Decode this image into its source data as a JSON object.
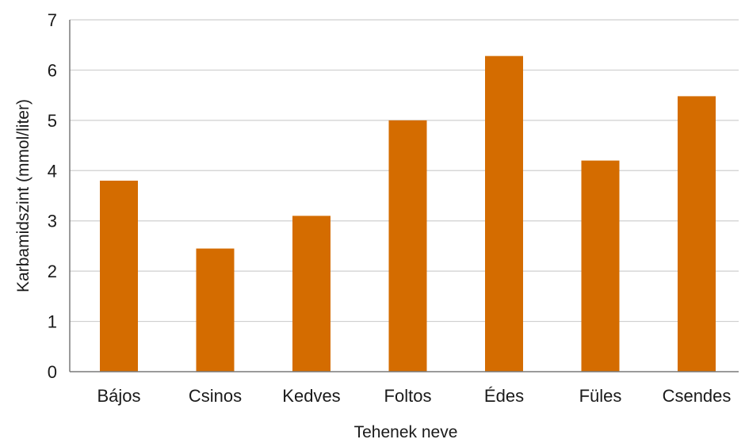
{
  "chart_data": {
    "type": "bar",
    "categories": [
      "Bájos",
      "Csinos",
      "Kedves",
      "Foltos",
      "Édes",
      "Füles",
      "Csendes"
    ],
    "values": [
      3.8,
      2.45,
      3.1,
      5.0,
      6.28,
      4.2,
      5.48
    ],
    "title": "",
    "xlabel": "Tehenek neve",
    "ylabel": "Karbamidszint (mmol/liter)",
    "ylim": [
      0,
      7
    ],
    "yticks": [
      "0",
      "1",
      "2",
      "3",
      "4",
      "5",
      "6",
      "7"
    ],
    "grid": true,
    "bar_color": "#d46c00"
  }
}
